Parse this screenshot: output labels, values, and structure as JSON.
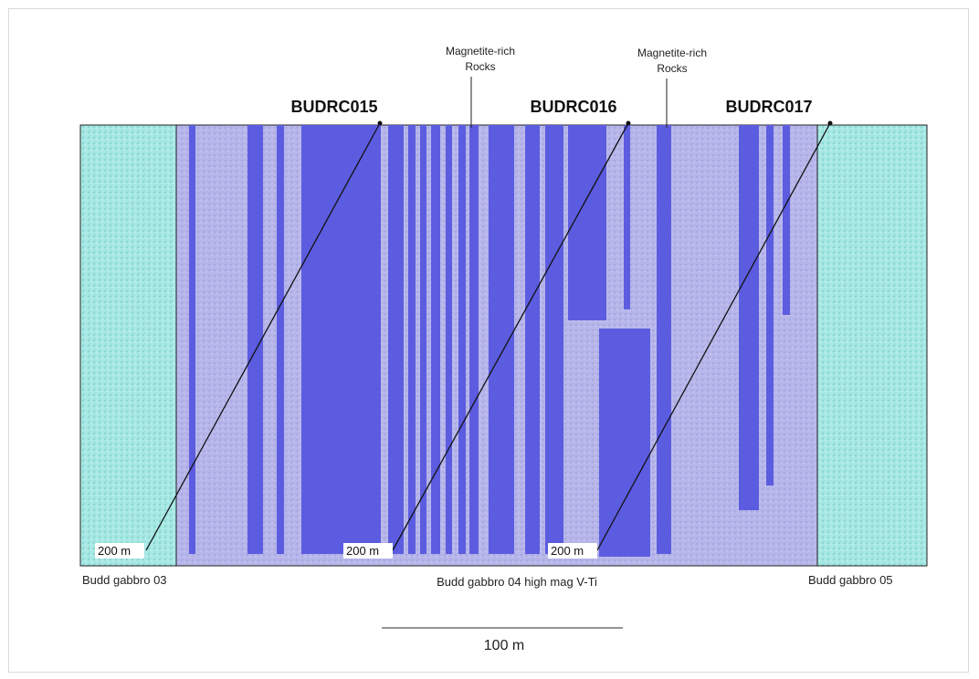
{
  "colors": {
    "outer_gabbro": "#a6e8e4",
    "main_gabbro": "#b7b6ea",
    "magnetite_band": "#5c5ce0",
    "outline": "#222222"
  },
  "annotations": {
    "magnetite_1_line1": "Magnetite-rich",
    "magnetite_1_line2": "Rocks",
    "magnetite_2_line1": "Magnetite-rich",
    "magnetite_2_line2": "Rocks"
  },
  "drillholes": [
    {
      "name": "BUDRC015",
      "depth_label": "200 m"
    },
    {
      "name": "BUDRC016",
      "depth_label": "200 m"
    },
    {
      "name": "BUDRC017",
      "depth_label": "200 m"
    }
  ],
  "units": {
    "left": "Budd gabbro 03",
    "center": "Budd gabbro 04 high mag V-Ti",
    "right": "Budd gabbro 05"
  },
  "scale_bar": {
    "label": "100 m"
  }
}
